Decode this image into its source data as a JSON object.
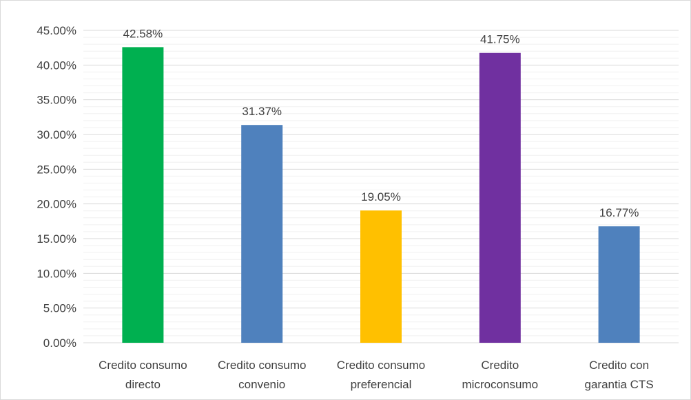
{
  "chart_data": {
    "type": "bar",
    "categories": [
      [
        "Credito consumo",
        "directo"
      ],
      [
        "Credito consumo",
        "convenio"
      ],
      [
        "Credito consumo",
        "preferencial"
      ],
      [
        "Credito",
        "microconsumo"
      ],
      [
        "Credito con",
        "garantia CTS"
      ]
    ],
    "values": [
      42.58,
      31.37,
      19.05,
      41.75,
      16.77
    ],
    "data_labels": [
      "42.58%",
      "31.37%",
      "19.05%",
      "41.75%",
      "16.77%"
    ],
    "bar_colors": [
      "#00b050",
      "#4f81bd",
      "#ffc000",
      "#7030a0",
      "#4f81bd"
    ],
    "ylim": [
      0,
      45
    ],
    "yticks": [
      0,
      5,
      10,
      15,
      20,
      25,
      30,
      35,
      40,
      45
    ],
    "ytick_labels": [
      "0.00%",
      "5.00%",
      "10.00%",
      "15.00%",
      "20.00%",
      "25.00%",
      "30.00%",
      "35.00%",
      "40.00%",
      "45.00%"
    ],
    "minor_step": 1,
    "grid": true,
    "legend": "none",
    "title": "",
    "xlabel": "",
    "ylabel": ""
  }
}
